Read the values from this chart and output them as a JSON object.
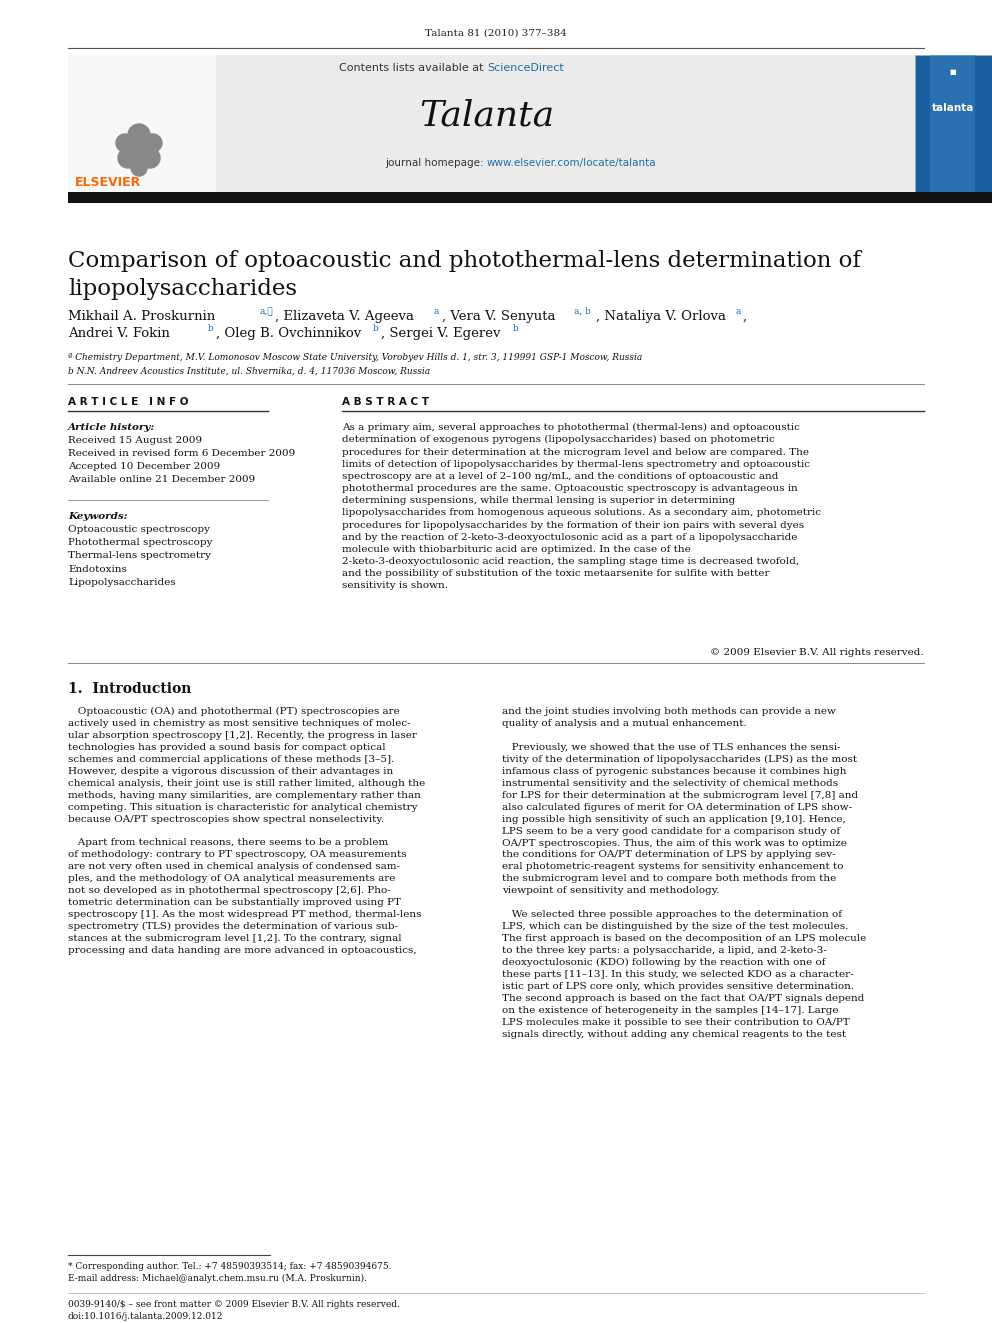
{
  "page_background": "#ffffff",
  "top_journal_line": "Talanta 81 (2010) 377–384",
  "header_sciencedirect_color": "#1a6fa8",
  "journal_name": "Talanta",
  "journal_homepage_url_color": "#1a6fa8",
  "divider_bar_color": "#1a1a1a",
  "article_title": "Comparison of optoacoustic and photothermal-lens determination of\nlipopolysaccharides",
  "affil_a": "ª Chemistry Department, M.V. Lomonosov Moscow State University, Vorobyev Hills d. 1, str. 3, 119991 GSP-1 Moscow, Russia",
  "affil_b": "b N.N. Andreev Acoustics Institute, ul. Shvernika, d. 4, 117036 Moscow, Russia",
  "section_article_info": "A R T I C L E   I N F O",
  "section_abstract": "A B S T R A C T",
  "article_history_label": "Article history:",
  "article_history": "Received 15 August 2009\nReceived in revised form 6 December 2009\nAccepted 10 December 2009\nAvailable online 21 December 2009",
  "keywords_label": "Keywords:",
  "keywords": "Optoacoustic spectroscopy\nPhotothermal spectroscopy\nThermal-lens spectrometry\nEndotoxins\nLipopolysaccharides",
  "abstract_text": "As a primary aim, several approaches to photothermal (thermal-lens) and optoacoustic determination of exogenous pyrogens (lipopolysaccharides) based on photometric procedures for their determination at the microgram level and below are compared. The limits of detection of lipopolysaccharides by thermal-lens spectrometry and optoacoustic spectroscopy are at a level of 2–100 ng/mL, and the conditions of optoacoustic and photothermal procedures are the same. Optoacoustic spectroscopy is advantageous in determining suspensions, while thermal lensing is superior in determining lipopolysaccharides from homogenous aqueous solutions. As a secondary aim, photometric procedures for lipopolysaccharides by the formation of their ion pairs with several dyes and by the reaction of 2-keto-3-deoxyoctulosonic acid as a part of a lipopolysaccharide molecule with thiobarbituric acid are optimized. In the case of the 2-keto-3-deoxyoctulosonic acid reaction, the sampling stage time is decreased twofold, and the possibility of substitution of the toxic metaarsenite for sulfite with better sensitivity is shown.",
  "copyright_text": "© 2009 Elsevier B.V. All rights reserved.",
  "section1_title": "1.  Introduction",
  "section1_col1": "   Optoacoustic (OA) and photothermal (PT) spectroscopies are\nactively used in chemistry as most sensitive techniques of molec-\nular absorption spectroscopy [1,2]. Recently, the progress in laser\ntechnologies has provided a sound basis for compact optical\nschemes and commercial applications of these methods [3–5].\nHowever, despite a vigorous discussion of their advantages in\nchemical analysis, their joint use is still rather limited, although the\nmethods, having many similarities, are complementary rather than\ncompeting. This situation is characteristic for analytical chemistry\nbecause OA/PT spectroscopies show spectral nonselectivity.\n\n   Apart from technical reasons, there seems to be a problem\nof methodology: contrary to PT spectroscopy, OA measurements\nare not very often used in chemical analysis of condensed sam-\nples, and the methodology of OA analytical measurements are\nnot so developed as in photothermal spectroscopy [2,6]. Pho-\ntometric determination can be substantially improved using PT\nspectroscopy [1]. As the most widespread PT method, thermal-lens\nspectrometry (TLS) provides the determination of various sub-\nstances at the submicrogram level [1,2]. To the contrary, signal\nprocessing and data handing are more advanced in optoacoustics,",
  "section1_col2": "and the joint studies involving both methods can provide a new\nquality of analysis and a mutual enhancement.\n\n   Previously, we showed that the use of TLS enhances the sensi-\ntivity of the determination of lipopolysaccharides (LPS) as the most\ninfamous class of pyrogenic substances because it combines high\ninstrumental sensitivity and the selectivity of chemical methods\nfor LPS for their determination at the submicrogram level [7,8] and\nalso calculated figures of merit for OA determination of LPS show-\ning possible high sensitivity of such an application [9,10]. Hence,\nLPS seem to be a very good candidate for a comparison study of\nOA/PT spectroscopies. Thus, the aim of this work was to optimize\nthe conditions for OA/PT determination of LPS by applying sev-\neral photometric-reagent systems for sensitivity enhancement to\nthe submicrogram level and to compare both methods from the\nviewpoint of sensitivity and methodology.\n\n   We selected three possible approaches to the determination of\nLPS, which can be distinguished by the size of the test molecules.\nThe first approach is based on the decomposition of an LPS molecule\nto the three key parts: a polysaccharide, a lipid, and 2-keto-3-\ndeoxyoctulosonic (KDO) following by the reaction with one of\nthese parts [11–13]. In this study, we selected KDO as a character-\nistic part of LPS core only, which provides sensitive determination.\nThe second approach is based on the fact that OA/PT signals depend\non the existence of heterogeneity in the samples [14–17]. Large\nLPS molecules make it possible to see their contribution to OA/PT\nsignals directly, without adding any chemical reagents to the test",
  "footnote_star": "* Corresponding author. Tel.: +7 48590393514; fax: +7 48590394675.",
  "footnote_email": "E-mail address: Michael@analyt.chem.msu.ru (M.A. Proskurnin).",
  "footnote_issn": "0039-9140/$ – see front matter © 2009 Elsevier B.V. All rights reserved.",
  "footnote_doi": "doi:10.1016/j.talanta.2009.12.012",
  "elsevier_color": "#ff6600",
  "link_color": "#1a6fa8"
}
